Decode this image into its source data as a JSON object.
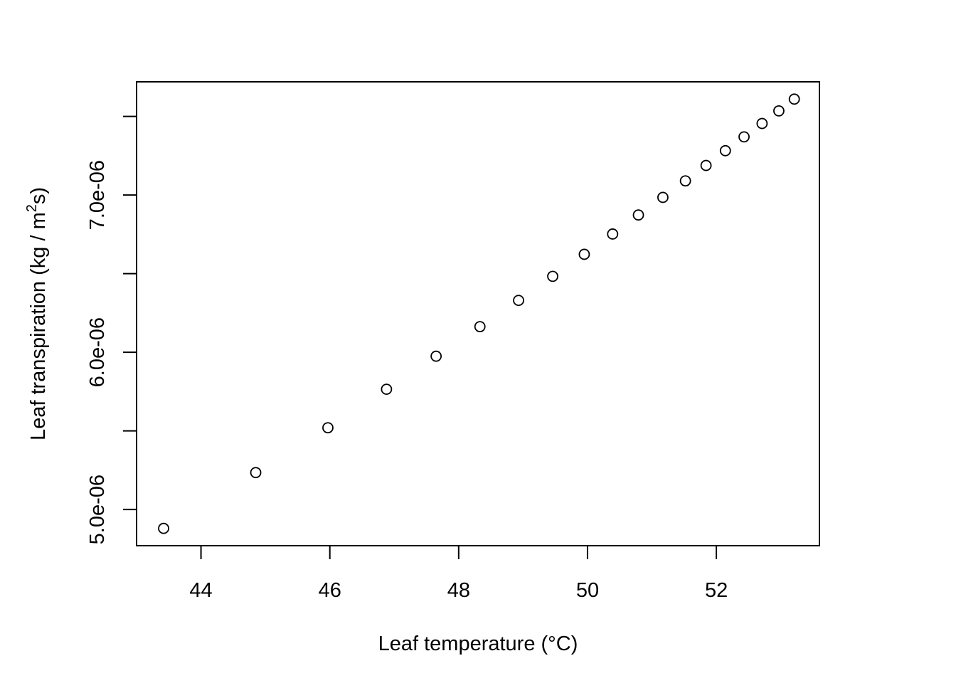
{
  "chart_data": {
    "type": "scatter",
    "title": "",
    "xlabel": "Leaf temperature (°C)",
    "ylabel": {
      "prefix": "Leaf transpiration (kg / m",
      "superscript": "2",
      "suffix": "s)"
    },
    "xlim": [
      43.0,
      53.6
    ],
    "ylim": [
      4.77e-06,
      7.72e-06
    ],
    "x_ticks": [
      44,
      46,
      48,
      50,
      52
    ],
    "x_tick_labels": [
      "44",
      "46",
      "48",
      "50",
      "52"
    ],
    "y_ticks": [
      5e-06,
      5.5e-06,
      6e-06,
      6.5e-06,
      7e-06,
      7.5e-06
    ],
    "y_tick_labels": [
      "5.0e-06",
      "",
      "6.0e-06",
      "",
      "7.0e-06",
      ""
    ],
    "grid": false,
    "legend": "none",
    "marker": "open-circle",
    "colors": {
      "marker_stroke": "#000000",
      "axis": "#000000",
      "background": "#ffffff"
    },
    "points": [
      {
        "x": 43.42,
        "y": 4.88e-06
      },
      {
        "x": 44.85,
        "y": 5.235e-06
      },
      {
        "x": 45.97,
        "y": 5.52e-06
      },
      {
        "x": 46.88,
        "y": 5.765e-06
      },
      {
        "x": 47.65,
        "y": 5.975e-06
      },
      {
        "x": 48.33,
        "y": 6.163e-06
      },
      {
        "x": 48.93,
        "y": 6.33e-06
      },
      {
        "x": 49.46,
        "y": 6.483e-06
      },
      {
        "x": 49.95,
        "y": 6.623e-06
      },
      {
        "x": 50.39,
        "y": 6.752e-06
      },
      {
        "x": 50.79,
        "y": 6.873e-06
      },
      {
        "x": 51.17,
        "y": 6.985e-06
      },
      {
        "x": 51.52,
        "y": 7.09e-06
      },
      {
        "x": 51.84,
        "y": 7.188e-06
      },
      {
        "x": 52.14,
        "y": 7.282e-06
      },
      {
        "x": 52.43,
        "y": 7.37e-06
      },
      {
        "x": 52.71,
        "y": 7.455e-06
      },
      {
        "x": 52.97,
        "y": 7.535e-06
      },
      {
        "x": 53.21,
        "y": 7.61e-06
      }
    ]
  }
}
